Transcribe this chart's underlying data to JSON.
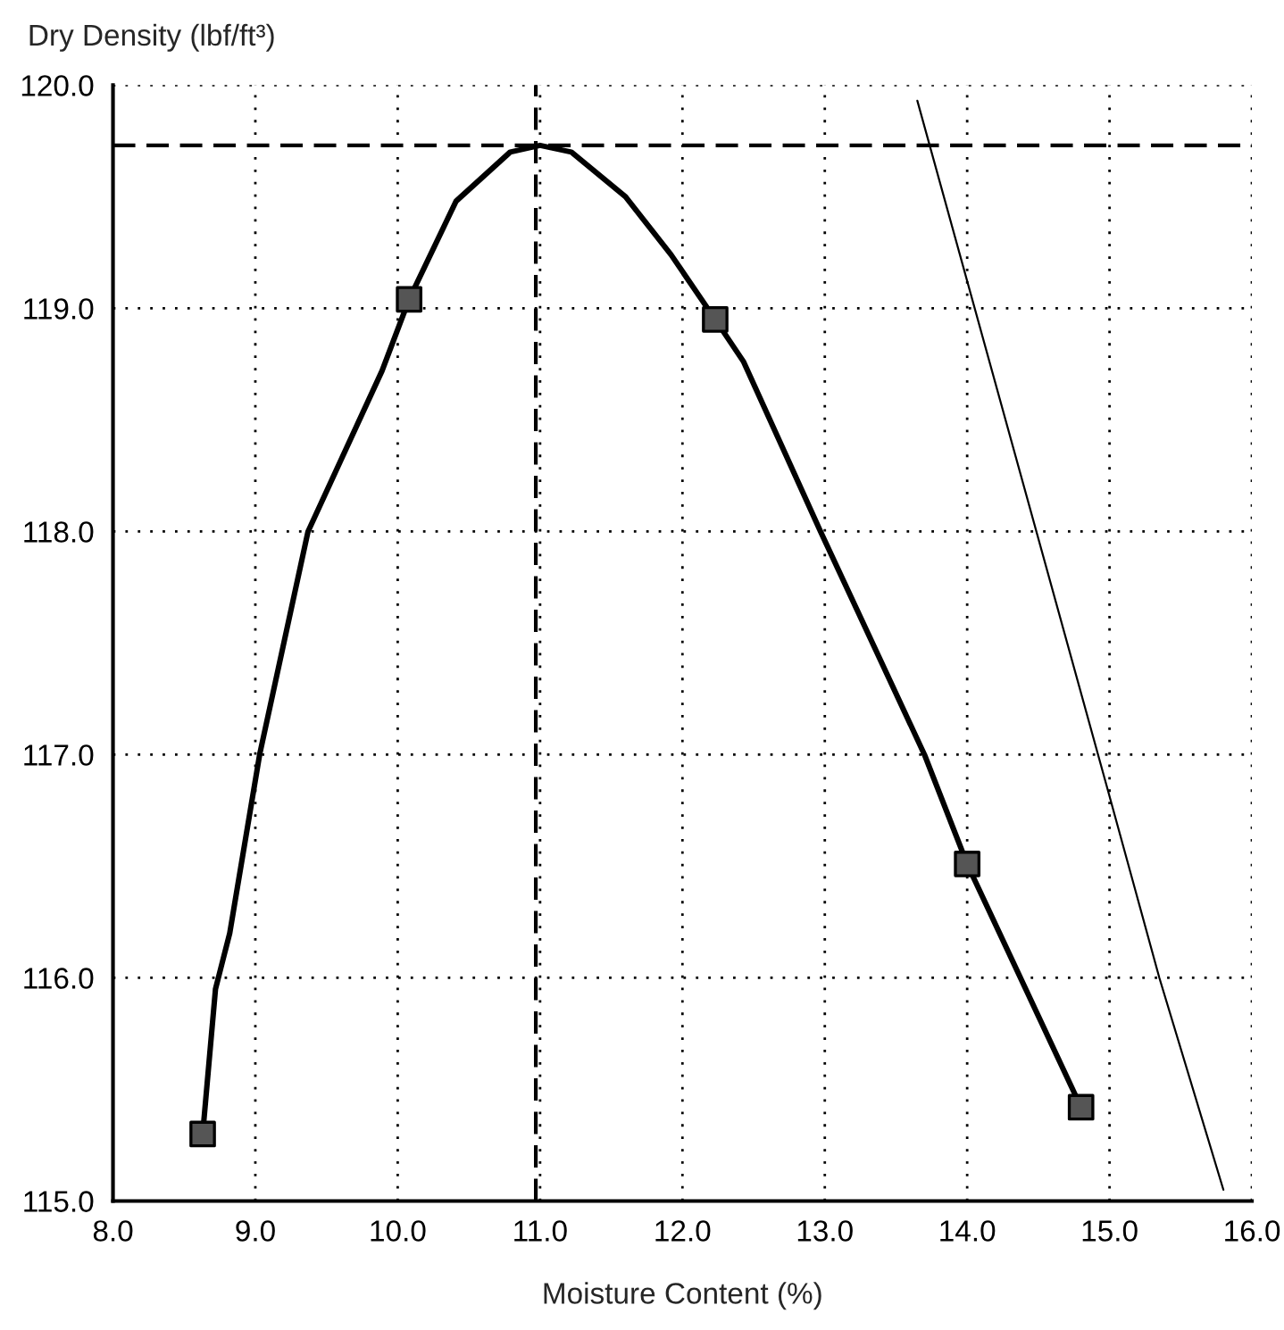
{
  "chart_data": {
    "type": "line",
    "ylabel": "Dry Density (lbf/ft³)",
    "xlabel": "Moisture Content (%)",
    "xlim": [
      8,
      16
    ],
    "ylim": [
      115,
      120
    ],
    "xticks": [
      {
        "value": 8,
        "label": "8.0"
      },
      {
        "value": 9,
        "label": "9.0"
      },
      {
        "value": 10,
        "label": "10.0"
      },
      {
        "value": 11,
        "label": "11.0"
      },
      {
        "value": 12,
        "label": "12.0"
      },
      {
        "value": 13,
        "label": "13.0"
      },
      {
        "value": 14,
        "label": "14.0"
      },
      {
        "value": 15,
        "label": "15.0"
      },
      {
        "value": 16,
        "label": "16.0"
      }
    ],
    "yticks": [
      {
        "value": 115,
        "label": "115.0"
      },
      {
        "value": 116,
        "label": "116.0"
      },
      {
        "value": 117,
        "label": "117.0"
      },
      {
        "value": 118,
        "label": "118.0"
      },
      {
        "value": 119,
        "label": "119.0"
      },
      {
        "value": 120,
        "label": "120.0"
      }
    ],
    "grid": true,
    "series": [
      {
        "color": "#000000",
        "line_style": "solid",
        "marker": "none",
        "x": [
          8.63,
          8.72,
          8.82,
          9.03,
          9.37,
          9.89,
          10.08,
          10.41,
          10.79,
          11.0,
          11.22,
          11.6,
          11.92,
          12.23,
          12.43,
          12.97,
          13.7,
          14.0,
          14.8
        ],
        "values": [
          115.3,
          115.95,
          116.2,
          117.0,
          118.0,
          118.72,
          119.04,
          119.48,
          119.7,
          119.73,
          119.7,
          119.5,
          119.24,
          118.95,
          118.76,
          118.0,
          117.0,
          116.51,
          115.42
        ]
      },
      {
        "type": "scatter",
        "color": "#555555",
        "marker": "square",
        "x": [
          8.63,
          10.08,
          12.23,
          14.0,
          14.8
        ],
        "values": [
          115.3,
          119.04,
          118.95,
          116.51,
          115.42
        ]
      },
      {
        "color": "#000000",
        "line_style": "solid",
        "marker": "none",
        "x": [
          13.65,
          14.98,
          15.35,
          15.8
        ],
        "values": [
          119.93,
          116.86,
          116.0,
          115.05
        ]
      }
    ],
    "ref_lines": [
      {
        "axis": "y",
        "value": 119.73,
        "color": "#000000",
        "line_style": "dashed"
      },
      {
        "axis": "x",
        "value": 10.97,
        "color": "#000000",
        "line_style": "dashed"
      }
    ]
  }
}
